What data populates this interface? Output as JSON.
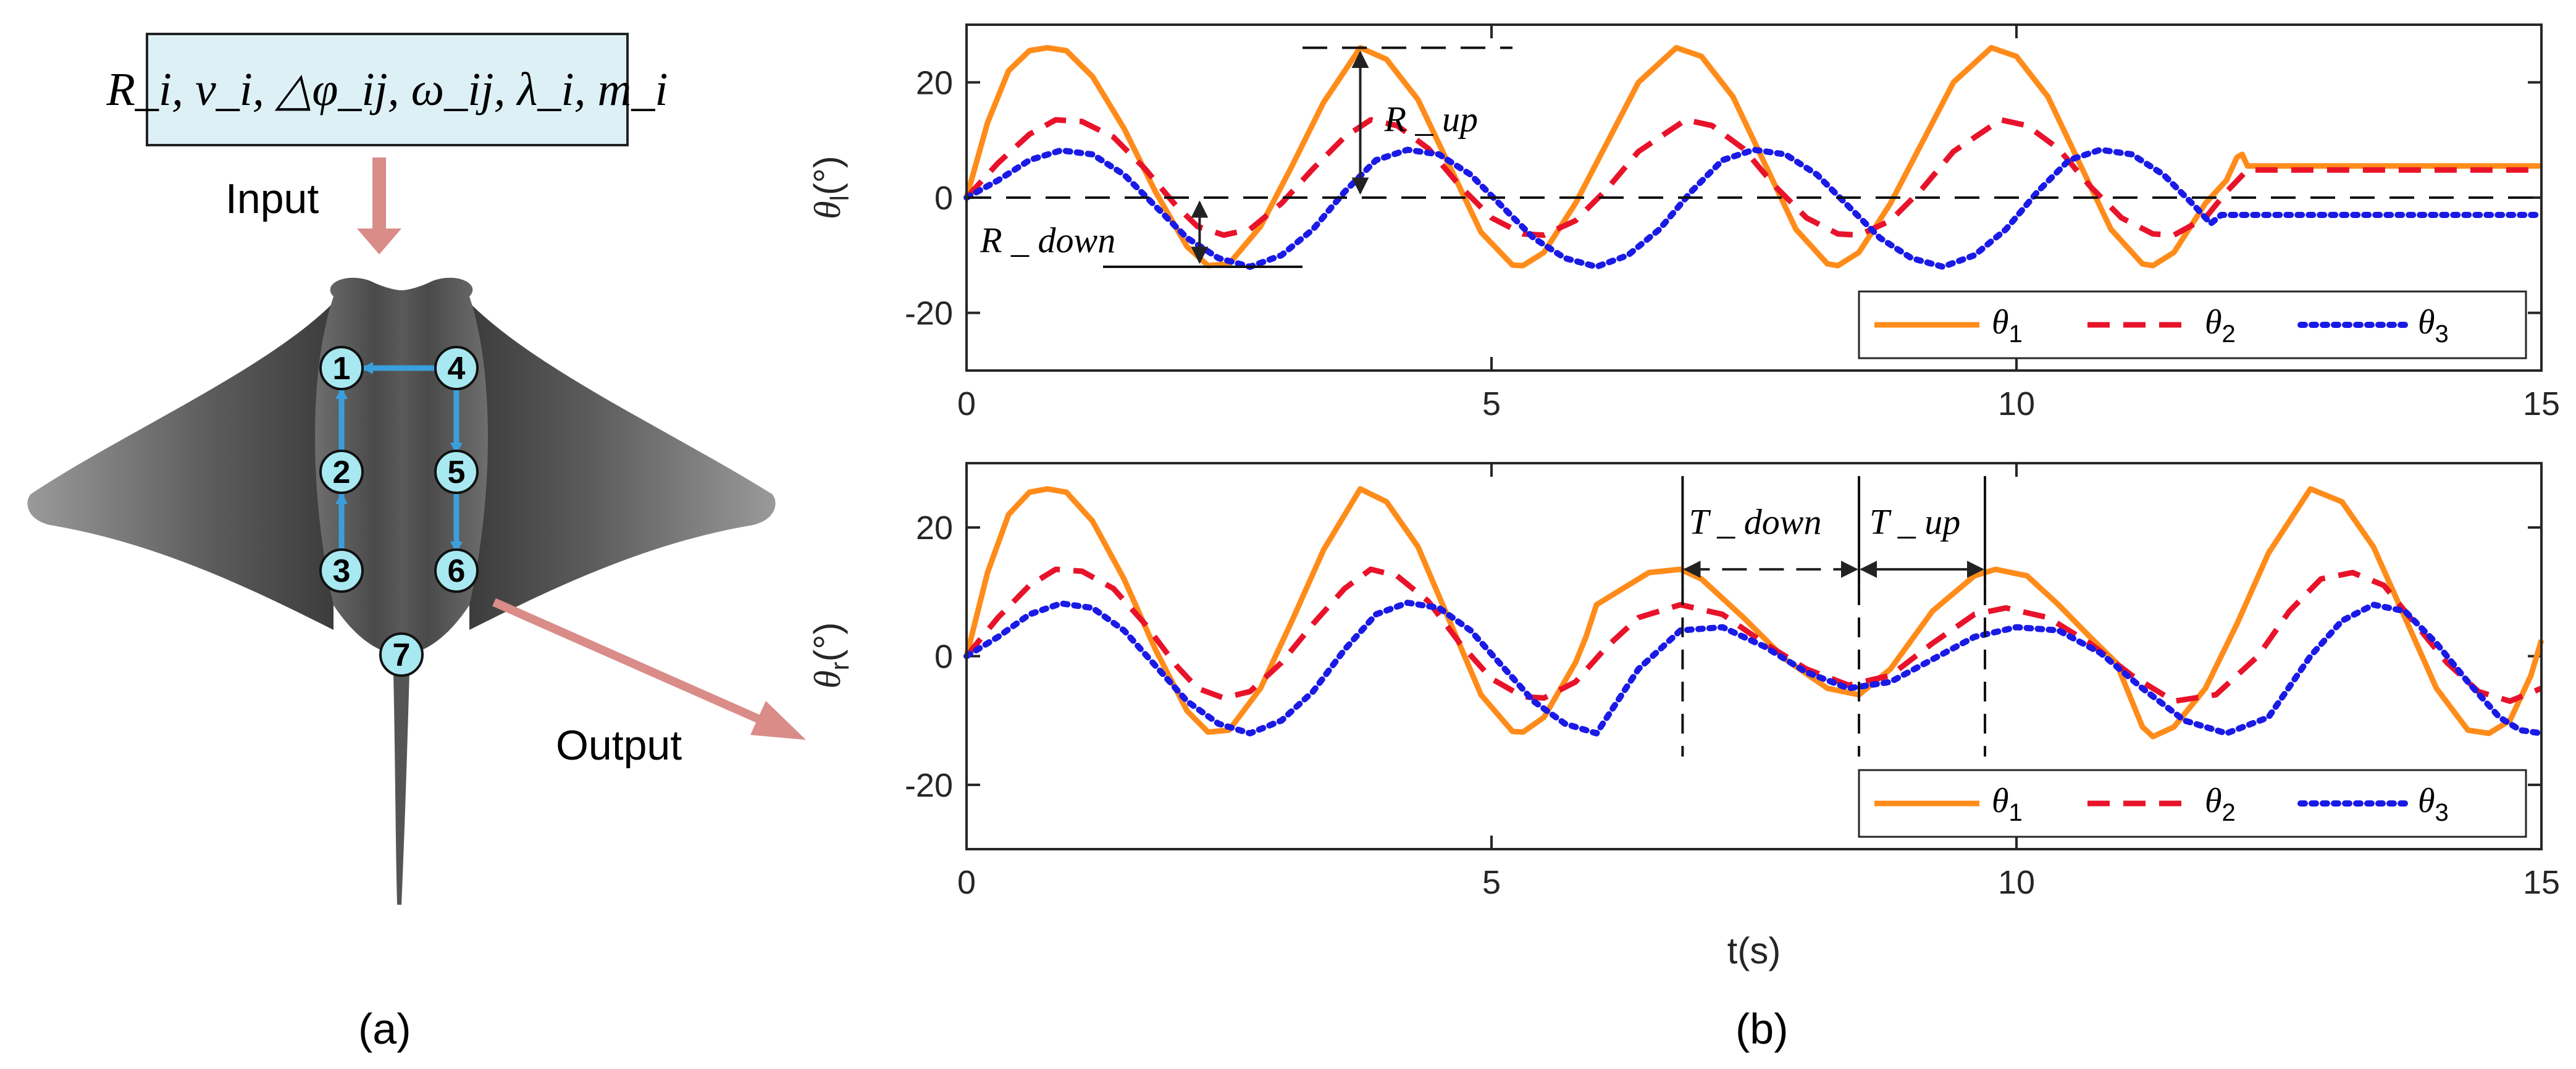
{
  "panel_a": {
    "input_formula": "R_i, v_i, △φ_ij, ω_ij, λ_i, m_i",
    "input_label": "Input",
    "output_label": "Output",
    "nodes": [
      "1",
      "2",
      "3",
      "4",
      "5",
      "6",
      "7"
    ],
    "label": "(a)"
  },
  "panel_b": {
    "label": "(b)"
  },
  "colors": {
    "theta1": "#FF8C1A",
    "theta2": "#E8132A",
    "theta3": "#1A1AE6",
    "arrow": "#D98C88",
    "node": "#A8E8F0",
    "link": "#3AA0DC",
    "box": "#DDF0F6"
  },
  "chart_data": [
    {
      "type": "line",
      "name": "top",
      "title": "",
      "xlabel": "",
      "ylabel_symbol": "θ",
      "ylabel_sub": "l",
      "ylabel_unit": "(°)",
      "xlim": [
        0,
        15
      ],
      "ylim": [
        -30,
        30
      ],
      "xticks": [
        0,
        5,
        10,
        15
      ],
      "xtick_labels": [
        "0",
        "5",
        "10",
        "15"
      ],
      "yticks": [
        20,
        0,
        -20
      ],
      "ytick_labels": [
        "20",
        "0",
        "-20"
      ],
      "legend": [
        {
          "symbol": "θ",
          "sub": "1"
        },
        {
          "symbol": "θ",
          "sub": "2"
        },
        {
          "symbol": "θ",
          "sub": "3"
        }
      ],
      "series": [
        {
          "name": "theta1",
          "style": "solid",
          "x": [
            0,
            0.2,
            0.4,
            0.6,
            0.77,
            0.95,
            1.2,
            1.5,
            1.8,
            2.1,
            2.3,
            2.5,
            2.8,
            3.1,
            3.4,
            3.75,
            4.0,
            4.3,
            4.6,
            4.9,
            5.2,
            5.3,
            5.5,
            5.8,
            6.1,
            6.4,
            6.76,
            7.0,
            7.3,
            7.6,
            7.9,
            8.2,
            8.3,
            8.5,
            8.8,
            9.1,
            9.4,
            9.76,
            10.0,
            10.3,
            10.6,
            10.9,
            11.2,
            11.3,
            11.5,
            11.8,
            12.0,
            12.1,
            12.15,
            12.2,
            12.4,
            12.8,
            13.5,
            14.5,
            15
          ],
          "y": [
            0,
            13,
            22,
            25.5,
            26,
            25.5,
            21,
            12,
            1,
            -8.5,
            -11.8,
            -11.5,
            -5,
            5.5,
            16.5,
            26,
            24,
            17,
            5.5,
            -6,
            -11.7,
            -11.8,
            -9.5,
            -1,
            9.5,
            20,
            26,
            24.5,
            17.5,
            6,
            -5.5,
            -11.5,
            -11.8,
            -9.5,
            -1,
            9.5,
            20,
            26,
            24.5,
            17.5,
            6,
            -5.5,
            -11.5,
            -11.8,
            -9.5,
            -1,
            3,
            7,
            7.5,
            5.5,
            5.5,
            5.5,
            5.5,
            5.5,
            5.5
          ]
        },
        {
          "name": "theta2",
          "style": "dashed",
          "x": [
            0,
            0.3,
            0.6,
            0.85,
            1.1,
            1.4,
            1.7,
            2.0,
            2.2,
            2.45,
            2.7,
            3.0,
            3.3,
            3.6,
            3.85,
            4.1,
            4.4,
            4.7,
            5.0,
            5.3,
            5.5,
            5.8,
            6.1,
            6.4,
            6.85,
            7.1,
            7.4,
            7.7,
            8.0,
            8.3,
            8.5,
            8.8,
            9.1,
            9.4,
            9.85,
            10.1,
            10.4,
            10.7,
            11.0,
            11.3,
            11.5,
            11.8,
            12.0,
            12.2,
            12.5,
            13,
            14,
            15
          ],
          "y": [
            0,
            6,
            11,
            13.5,
            13.2,
            10.5,
            5,
            -1.5,
            -5,
            -6.5,
            -5.5,
            -1,
            5,
            10.5,
            13.5,
            12.5,
            8.5,
            2,
            -3.5,
            -6.3,
            -6.5,
            -4,
            1.5,
            8,
            13.5,
            12.5,
            8.5,
            2,
            -3.5,
            -6.3,
            -6.5,
            -4,
            1.5,
            8,
            13.5,
            12.5,
            8.5,
            2,
            -3.5,
            -6.3,
            -6.5,
            -3.5,
            1,
            4.8,
            4.8,
            4.8,
            4.8,
            4.8
          ]
        },
        {
          "name": "theta3",
          "style": "dotted",
          "x": [
            0,
            0.3,
            0.6,
            0.9,
            1.2,
            1.5,
            1.8,
            2.1,
            2.4,
            2.7,
            3.0,
            3.3,
            3.6,
            3.9,
            4.2,
            4.5,
            4.8,
            5.1,
            5.4,
            5.7,
            6.0,
            6.3,
            6.6,
            6.9,
            7.2,
            7.5,
            7.8,
            8.1,
            8.4,
            8.7,
            9.0,
            9.3,
            9.6,
            9.9,
            10.2,
            10.5,
            10.8,
            11.1,
            11.4,
            11.7,
            11.85,
            11.95,
            12.2,
            13,
            14,
            15
          ],
          "y": [
            0,
            3,
            6.5,
            8.2,
            7.5,
            4,
            -1.5,
            -7,
            -10.5,
            -12,
            -10,
            -5.5,
            1,
            6.5,
            8.3,
            7.5,
            4,
            -1.5,
            -7,
            -10.5,
            -12,
            -10,
            -5.5,
            1,
            6.5,
            8.3,
            7.5,
            4,
            -1.5,
            -7,
            -10.5,
            -12,
            -10,
            -5.5,
            1,
            6.5,
            8.3,
            7.5,
            4,
            -1.5,
            -4.5,
            -3,
            -3,
            -3,
            -3,
            -3
          ]
        }
      ],
      "annotations": {
        "r_up": "R _ up",
        "r_down": "R _ down"
      }
    },
    {
      "type": "line",
      "name": "bottom",
      "title": "",
      "xlabel": "t(s)",
      "ylabel_symbol": "θ",
      "ylabel_sub": "r",
      "ylabel_unit": "(°)",
      "xlim": [
        0,
        15
      ],
      "ylim": [
        -30,
        30
      ],
      "xticks": [
        0,
        5,
        10,
        15
      ],
      "xtick_labels": [
        "0",
        "5",
        "10",
        "15"
      ],
      "yticks": [
        20,
        0,
        -20
      ],
      "ytick_labels": [
        "20",
        "0",
        "-20"
      ],
      "legend": [
        {
          "symbol": "θ",
          "sub": "1"
        },
        {
          "symbol": "θ",
          "sub": "2"
        },
        {
          "symbol": "θ",
          "sub": "3"
        }
      ],
      "series": [
        {
          "name": "theta1",
          "style": "solid",
          "x": [
            0,
            0.2,
            0.4,
            0.6,
            0.77,
            0.95,
            1.2,
            1.5,
            1.8,
            2.1,
            2.3,
            2.5,
            2.8,
            3.1,
            3.4,
            3.75,
            4.0,
            4.3,
            4.6,
            4.9,
            5.2,
            5.3,
            5.5,
            5.8,
            5.9,
            6.0,
            6.2,
            6.5,
            6.8,
            7.0,
            7.4,
            7.8,
            8.2,
            8.5,
            8.8,
            9.2,
            9.6,
            9.8,
            10.1,
            10.4,
            10.7,
            10.95,
            11.05,
            11.2,
            11.3,
            11.5,
            11.8,
            12.1,
            12.4,
            12.8,
            13.1,
            13.4,
            13.7,
            14.0,
            14.3,
            14.5,
            14.7,
            14.9,
            15
          ],
          "y": [
            0,
            13,
            22,
            25.5,
            26,
            25.5,
            21,
            12,
            1,
            -8.5,
            -11.8,
            -11.5,
            -5,
            5.5,
            16.5,
            26,
            24,
            17,
            5.5,
            -6,
            -11.7,
            -11.8,
            -9.5,
            -1,
            3,
            8,
            10,
            13,
            13.5,
            12,
            6,
            -0.5,
            -5,
            -6,
            -2,
            7,
            12.5,
            13.5,
            12.5,
            8,
            3,
            -1,
            -5,
            -11,
            -12.5,
            -11,
            -5,
            5,
            16,
            26,
            24,
            17,
            6,
            -5,
            -11.5,
            -12,
            -10,
            -3,
            2.5
          ]
        },
        {
          "name": "theta2",
          "style": "dashed",
          "x": [
            0,
            0.3,
            0.6,
            0.85,
            1.1,
            1.4,
            1.7,
            2.0,
            2.2,
            2.45,
            2.7,
            3.0,
            3.3,
            3.6,
            3.85,
            4.1,
            4.4,
            4.7,
            5.0,
            5.3,
            5.5,
            5.8,
            6.1,
            6.4,
            6.8,
            7.2,
            7.6,
            8.0,
            8.4,
            8.8,
            9.2,
            9.6,
            9.9,
            10.3,
            10.7,
            11.1,
            11.5,
            11.9,
            12.3,
            12.6,
            12.9,
            13.2,
            13.5,
            13.8,
            14.1,
            14.4,
            14.7,
            15
          ],
          "y": [
            0,
            6,
            11,
            13.5,
            13.2,
            10.5,
            5,
            -1.5,
            -5,
            -6.5,
            -5.5,
            -1,
            5,
            10.5,
            13.5,
            12.5,
            8.5,
            2,
            -3.5,
            -6.3,
            -6.5,
            -4,
            1.5,
            6,
            8,
            6.5,
            2,
            -2,
            -4.5,
            -3,
            2,
            6.5,
            7.5,
            6,
            2,
            -3,
            -7,
            -6,
            0,
            7,
            12,
            13,
            11,
            5,
            -1,
            -5.5,
            -7,
            -5
          ]
        },
        {
          "name": "theta3",
          "style": "dotted",
          "x": [
            0,
            0.3,
            0.6,
            0.9,
            1.2,
            1.5,
            1.8,
            2.1,
            2.4,
            2.7,
            3.0,
            3.3,
            3.6,
            3.9,
            4.2,
            4.5,
            4.8,
            5.1,
            5.4,
            5.7,
            6.0,
            6.4,
            6.8,
            7.2,
            7.6,
            8.0,
            8.4,
            8.8,
            9.2,
            9.6,
            10.0,
            10.4,
            10.8,
            11.2,
            11.6,
            12.0,
            12.4,
            12.8,
            13.1,
            13.4,
            13.7,
            14.0,
            14.3,
            14.6,
            14.8,
            15
          ],
          "y": [
            0,
            3,
            6.5,
            8.2,
            7.5,
            4,
            -1.5,
            -7,
            -10.5,
            -12,
            -10,
            -5.5,
            1,
            6.5,
            8.3,
            7.5,
            4,
            -1.5,
            -7,
            -10.5,
            -12,
            -2,
            4,
            4.5,
            1.5,
            -2.5,
            -5,
            -4,
            -0.5,
            3,
            4.5,
            4,
            0.5,
            -5,
            -10,
            -12,
            -9.5,
            0,
            5.5,
            8,
            7,
            2,
            -4,
            -9.5,
            -11.5,
            -12
          ]
        }
      ],
      "annotations": {
        "t_down": "T _ down",
        "t_up": "T _ up"
      }
    }
  ]
}
